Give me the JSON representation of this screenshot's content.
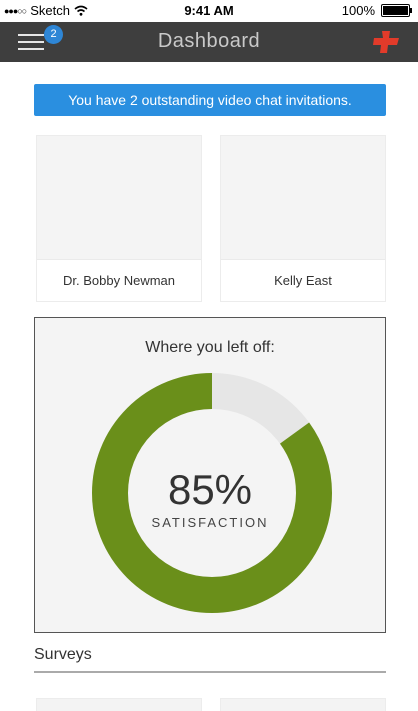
{
  "status_bar": {
    "carrier": "Sketch",
    "time": "9:41 AM",
    "battery": "100%"
  },
  "nav": {
    "title": "Dashboard",
    "badge_count": "2",
    "menu_icon": "menu-icon",
    "action_icon": "red-cross-icon",
    "accent": "#e23b2a"
  },
  "alert": {
    "text": "You have 2 outstanding video chat invitations.",
    "color": "#2a8fe0"
  },
  "contacts": [
    {
      "name": "Dr. Bobby Newman"
    },
    {
      "name": "Kelly East"
    }
  ],
  "progress": {
    "title": "Where you left off:",
    "percent_text": "85%",
    "percent": 85,
    "label": "SATISFACTION",
    "fill_color": "#6a8f1a",
    "track_color": "#e6e6e6"
  },
  "surveys": {
    "title": "Surveys"
  }
}
